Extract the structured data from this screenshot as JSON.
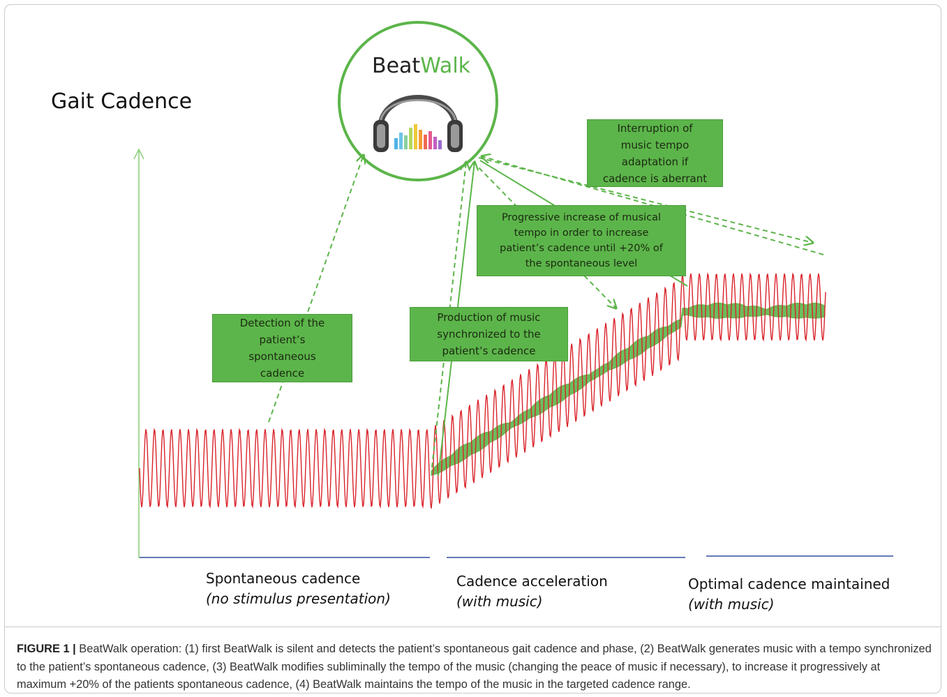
{
  "diagram": {
    "y_axis_label": "Gait Cadence",
    "logo": {
      "word1": "Beat",
      "word2": "Walk",
      "icon": "headphones-equalizer-icon"
    },
    "boxes": {
      "detection": [
        "Detection of the",
        "patient’s",
        "spontaneous",
        "cadence"
      ],
      "production": [
        "Production of music",
        "synchronized to the",
        "patient’s cadence"
      ],
      "progressive": [
        "Progressive increase of musical",
        "tempo in order to increase",
        "patient’s cadence until +20% of",
        "the spontaneous level"
      ],
      "interruption": [
        "Interruption of",
        "music tempo",
        "adaptation if",
        "cadence is aberrant"
      ]
    },
    "phases": [
      {
        "name": "Spontaneous cadence",
        "note": "(no stimulus presentation)"
      },
      {
        "name": "Cadence acceleration",
        "note": "(with music)"
      },
      {
        "name": "Optimal cadence maintained",
        "note": "(with music)"
      }
    ],
    "colors": {
      "gait_signal": "#d9232a",
      "music_signal": "#5cb54a",
      "axis": "#8fcf7f",
      "phase_line": "#2e4d9c",
      "box_fill": "#5cb54a"
    }
  },
  "caption": {
    "label": "FIGURE 1 |",
    "text": " BeatWalk operation: (1) first BeatWalk is silent and detects the patient’s spontaneous gait cadence and phase, (2) BeatWalk generates music with a tempo synchronized to the patient’s spontaneous cadence, (3) BeatWalk modifies subliminally the tempo of the music (changing the peace of music if necessary), to increase it progressively at maximum +20% of the patients spontaneous cadence, (4) BeatWalk maintains the tempo of the music in the targeted cadence range."
  }
}
